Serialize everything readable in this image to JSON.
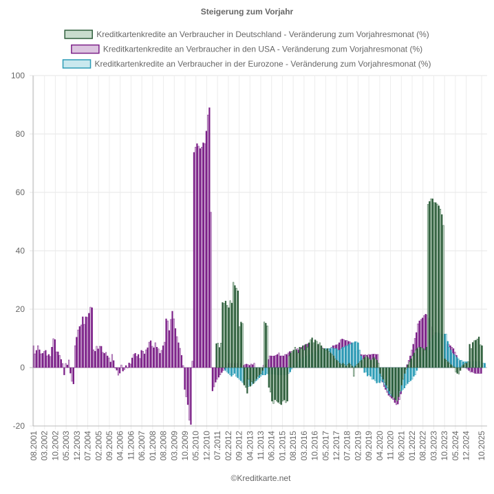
{
  "chart_data": {
    "type": "bar",
    "title": "Steigerung zum Vorjahr",
    "footer": "©Kreditkarte.net",
    "ylim": [
      -20,
      100
    ],
    "y_ticks": [
      100,
      80,
      60,
      40,
      20,
      0,
      -20
    ],
    "grid": true,
    "legend_position": "top",
    "x_tick_labels": [
      "08.2001",
      "03.2002",
      "10.2002",
      "05.2003",
      "12.2003",
      "07.2004",
      "02.2005",
      "09.2005",
      "04.2006",
      "11.2006",
      "06.2007",
      "01.2008",
      "08.2008",
      "03.2009",
      "10.2009",
      "05.2010",
      "12.2010",
      "07.2011",
      "02.2012",
      "09.2012",
      "04.2013",
      "11.2013",
      "06.2014",
      "01.2015",
      "08.2015",
      "03.2016",
      "10.2016",
      "05.2017",
      "12.2017",
      "07.2018",
      "02.2019",
      "09.2019",
      "04.2020",
      "11.2020",
      "06.2021",
      "01.2022",
      "08.2022",
      "03.2023",
      "10.2023",
      "05.2024",
      "12.2024",
      "10.2025"
    ],
    "series": [
      {
        "name": "Kreditkartenkredite an Verbraucher in den USA - Veränderung zum Vorjahresmonat (%)",
        "color": "#7b1f87",
        "fill": "#dcc5e0",
        "values": [
          7.5,
          4.7,
          5.9,
          7.5,
          6.1,
          4.7,
          4.9,
          5.5,
          5.9,
          4.0,
          4.5,
          3.8,
          7.0,
          9.9,
          9.6,
          5.4,
          5.4,
          4.2,
          2.8,
          1.4,
          -2.5,
          1.4,
          0.9,
          2.6,
          -1.9,
          -4.7,
          -5.6,
          7.5,
          10.4,
          12.9,
          14.1,
          14.6,
          17.4,
          14.8,
          17.4,
          17.2,
          18.6,
          20.7,
          20.5,
          6.1,
          5.6,
          7.3,
          6.4,
          7.3,
          7.3,
          5.2,
          4.9,
          5.2,
          4.0,
          3.3,
          1.9,
          4.5,
          2.4,
          -0.2,
          -0.9,
          -2.6,
          -1.9,
          0.9,
          -1.2,
          -0.7,
          0.7,
          0,
          1.6,
          1.2,
          3.3,
          4.5,
          4.9,
          3.8,
          4.5,
          3.1,
          5.9,
          5.6,
          4.7,
          6.1,
          6.8,
          8.7,
          9.2,
          7.3,
          6.8,
          8.5,
          7.0,
          6.4,
          4.9,
          5.9,
          7.5,
          8.7,
          16.7,
          16.0,
          12.7,
          16.5,
          19.3,
          16.7,
          13.4,
          10.6,
          8.5,
          6.6,
          4.2,
          0.7,
          -7.5,
          -10,
          -12.7,
          -18,
          -19.5,
          2.2,
          73.7,
          75.5,
          76.7,
          75.8,
          75,
          75.5,
          77,
          76.7,
          81,
          86.5,
          89,
          53.2,
          -8,
          -6.6,
          -5,
          -4,
          -3.3,
          -2.5,
          -1.7,
          -1,
          -0.5,
          -0.3,
          1.5,
          1.2,
          1.5,
          2,
          1.5,
          1,
          1.5,
          2,
          1.5,
          1,
          0.8,
          1,
          1.2,
          1,
          0.8,
          1.2,
          1,
          1.5,
          -1,
          -1,
          -0.5,
          -1.5,
          -1,
          0.8,
          1,
          1,
          2.8,
          4,
          4,
          3.9,
          4,
          4.2,
          4.5,
          5,
          4,
          4,
          4,
          4.5,
          4.5,
          5,
          5.5,
          5.5,
          5.2,
          6,
          6.2,
          6.5,
          6,
          6.8,
          7,
          7.5,
          7.8,
          8,
          8.2,
          8,
          8.5,
          8,
          7.5,
          7.8,
          7.5,
          7.2,
          7,
          6.8,
          6.5,
          6.5,
          6.2,
          6,
          6.5,
          7,
          7.5,
          7.5,
          7.8,
          7.8,
          8.5,
          9.5,
          9.8,
          9.6,
          9.3,
          9.3,
          9,
          8.8,
          8.5,
          8.2,
          6,
          5.5,
          5.9,
          5.9,
          4.5,
          4.3,
          4.3,
          4.4,
          4.2,
          4.5,
          4.4,
          4.5,
          4.6,
          4.6,
          4.5,
          4.5,
          -1,
          -3,
          -5,
          -6.5,
          -7.5,
          -8.5,
          -9.5,
          -10,
          -10.5,
          -11,
          -12,
          -12.7,
          -12.5,
          -11,
          -9,
          -6.5,
          -4,
          -1.5,
          1,
          2.5,
          4,
          6,
          8,
          10,
          12,
          15,
          16,
          16.5,
          17,
          17.8,
          18.3,
          18,
          17,
          16,
          14,
          12.8,
          12,
          11.2,
          10.8,
          10,
          10,
          9.4,
          8.9,
          8.9,
          8.1,
          8,
          7.5,
          7,
          6.5,
          5.3,
          4.2,
          3,
          2.2,
          1.4,
          0.5,
          0.5,
          0,
          -0.5,
          -1,
          -1.5,
          -1.5,
          -1.7,
          -2,
          -2,
          -2,
          -2,
          -2
        ]
      },
      {
        "name": "Kreditkartenkredite an Verbraucher in der Eurozone - Veränderung zum Vorjahresmonat (%)",
        "color": "#2a9bb5",
        "fill": "#c9e8ee",
        "start": "12.2011",
        "values": [
          -1,
          -1.5,
          -2,
          -2.5,
          -3,
          -2.5,
          -2,
          -3,
          -3.5,
          -4,
          -4.5,
          -5,
          -5.5,
          -6,
          -6.8,
          -6.5,
          -6,
          -6,
          -5.5,
          -5,
          -4.5,
          -4,
          -3.5,
          -3,
          -2.5,
          -2.5,
          -2.5,
          -2,
          -2.3,
          -2.3,
          -2.2,
          -2.3,
          -2.3,
          -2.4,
          -2.5,
          -2.5,
          -2.5,
          -2.5,
          -2.5,
          -2.5,
          -2.5,
          -2,
          -1.5,
          -0.5,
          0.5,
          1,
          1.5,
          2,
          2.5,
          3,
          3,
          3.5,
          4,
          4,
          4.5,
          4.5,
          5,
          5,
          5.5,
          5.5,
          5.5,
          6,
          6,
          6,
          6.5,
          6.5,
          6.5,
          6.5,
          6.5,
          7,
          6.5,
          6.5,
          6.5,
          6,
          6,
          6.5,
          7,
          7,
          7.5,
          7.5,
          8,
          8,
          8.5,
          8.5,
          8.9,
          8.8,
          8.5,
          6,
          4,
          2,
          -1.7,
          -1.5,
          -2.9,
          -2.5,
          -3,
          -4,
          -4,
          -4.5,
          -5.3,
          -5,
          -5.2,
          -4.5,
          -5,
          -6,
          -7,
          -8,
          -9,
          -9.5,
          -10,
          -10,
          -10,
          -9.5,
          -9,
          -8.5,
          -8,
          -7.5,
          -7,
          -6,
          -5.5,
          -4.9,
          -4.5,
          -4,
          -3,
          -2.5,
          -1,
          0.5,
          2,
          3,
          4,
          5,
          6,
          7,
          8,
          9,
          10,
          11,
          11.5,
          12,
          12,
          11.8,
          11.5,
          11.5,
          11.5,
          11.5,
          9,
          7,
          6,
          5,
          4.5,
          4,
          3.5,
          3,
          2.5,
          2.5,
          2,
          2,
          2,
          2,
          2,
          2,
          2,
          2.2,
          2.2,
          2,
          2,
          2,
          1.8,
          1.5,
          1.5
        ]
      },
      {
        "name": "Kreditkartenkredite an Verbraucher in Deutschland - Veränderung zum Vorjahresmonat (%)",
        "color": "#2f5f3c",
        "fill": "#c9dccd",
        "start": "06.2011",
        "values": [
          8.2,
          8.4,
          6.9,
          8.4,
          22.3,
          22,
          22.8,
          21.3,
          20.5,
          22.9,
          22.1,
          29.2,
          28.1,
          27.2,
          26.3,
          14,
          15.6,
          15.1,
          -6,
          -6.8,
          -8.8,
          -4,
          -6.4,
          -4.8,
          -5.5,
          -4.5,
          -3.8,
          -3,
          -2.5,
          -2,
          -1,
          15.6,
          15.2,
          14.3,
          -6.8,
          -8.4,
          -11.5,
          -12.3,
          -11,
          -11.5,
          -11.9,
          -12.3,
          -12.7,
          -11.5,
          -11.1,
          -12,
          -11.5,
          4,
          5,
          5.5,
          6,
          7,
          6,
          5,
          7,
          6.5,
          7.5,
          6,
          8,
          7,
          8.5,
          9.5,
          10.2,
          8.5,
          9.5,
          9,
          8,
          8.5,
          7.5,
          6.5,
          6.5,
          6,
          6.5,
          5.5,
          5,
          4.5,
          4,
          3,
          2.5,
          2,
          1.5,
          1,
          1.5,
          1,
          0.5,
          1,
          1.5,
          1,
          0.5,
          -3,
          0.5,
          1,
          1.5,
          2,
          2.5,
          3,
          3.5,
          4,
          3.5,
          3,
          2.5,
          3,
          3.5,
          3,
          2.5,
          1.5,
          -2,
          -3,
          -4,
          -5,
          -6,
          -7,
          -8,
          -9,
          -10,
          -10.5,
          -11,
          -11.5,
          -10,
          -8,
          -6,
          -4,
          -2,
          -0.5,
          1,
          2,
          3,
          4,
          5,
          6,
          6.5,
          7,
          7,
          6.8,
          6.5,
          6,
          7,
          55.9,
          56.9,
          57.8,
          57.8,
          56.5,
          56.5,
          56,
          55.4,
          54.3,
          52.4,
          48.7,
          3,
          2.5,
          2,
          1.5,
          1,
          0.5,
          0.2,
          -1.5,
          -2,
          -2.2,
          -1,
          0.5,
          1,
          1.5,
          1.5,
          2,
          8,
          6.5,
          8.6,
          9.2,
          9.4,
          9.8,
          10.5,
          7.8,
          7.5
        ]
      }
    ],
    "legend_order": [
      2,
      0,
      1
    ]
  }
}
